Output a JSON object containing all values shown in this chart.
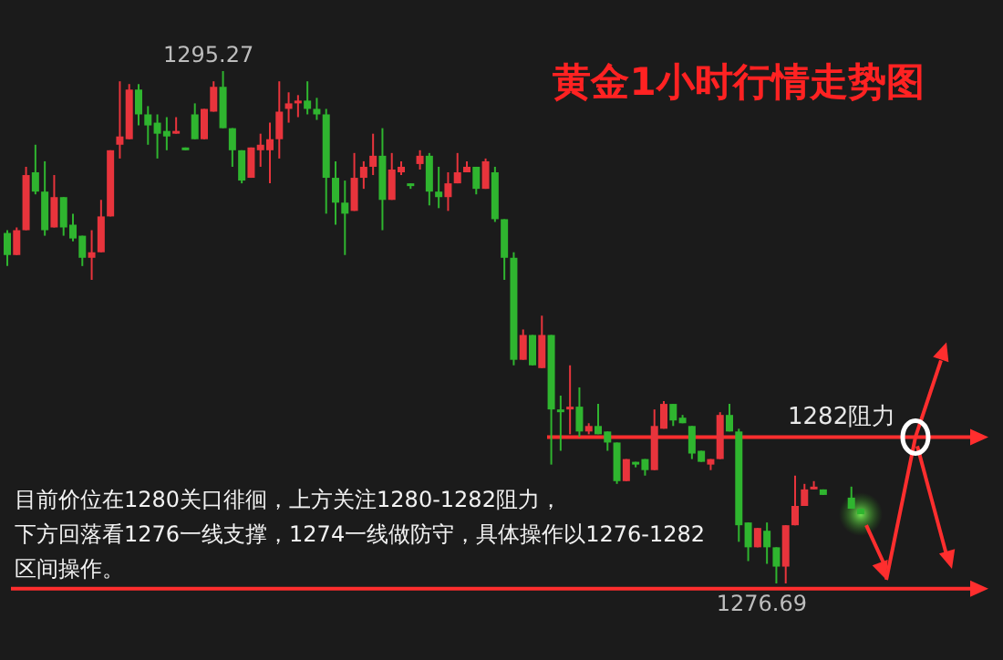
{
  "chart_data": {
    "type": "candlestick",
    "title": "黄金1小时行情走势图",
    "categories": [
      null,
      null,
      null,
      null,
      null,
      null,
      null,
      null,
      null,
      null,
      null,
      null,
      null,
      null,
      null,
      null,
      null,
      null,
      null,
      null,
      null,
      null,
      null,
      null,
      null,
      null,
      null,
      null,
      null,
      null,
      null,
      null,
      null,
      null,
      null,
      null,
      null,
      null,
      null,
      null,
      null,
      null,
      null,
      null,
      null,
      null,
      null,
      null,
      null,
      null,
      null,
      null,
      null,
      null,
      null,
      null,
      null,
      null,
      null,
      null,
      null,
      null,
      null,
      null,
      null,
      null,
      null,
      null,
      null,
      null,
      null,
      null,
      null,
      null,
      null,
      null,
      null,
      null,
      null,
      null,
      null,
      null,
      null,
      null,
      null,
      null,
      null,
      null,
      null,
      null,
      null,
      null
    ],
    "ohlc": [
      [
        1289.4,
        1289.5,
        1288.2,
        1288.6
      ],
      [
        1288.6,
        1289.6,
        1288.6,
        1289.5
      ],
      [
        1289.5,
        1291.8,
        1289.5,
        1291.5
      ],
      [
        1291.6,
        1292.6,
        1290.8,
        1290.9
      ],
      [
        1290.9,
        1292.0,
        1289.3,
        1289.5
      ],
      [
        1289.6,
        1291.5,
        1289.6,
        1290.7
      ],
      [
        1290.7,
        1290.7,
        1289.3,
        1289.6
      ],
      [
        1289.7,
        1290.1,
        1289.1,
        1289.2
      ],
      [
        1289.3,
        1289.3,
        1288.2,
        1288.5
      ],
      [
        1288.5,
        1289.5,
        1287.7,
        1288.7
      ],
      [
        1288.7,
        1290.6,
        1288.7,
        1290.0
      ],
      [
        1290.0,
        1292.4,
        1290.0,
        1292.4
      ],
      [
        1292.6,
        1294.9,
        1292.1,
        1292.9
      ],
      [
        1292.8,
        1294.8,
        1292.8,
        1294.6
      ],
      [
        1294.6,
        1294.8,
        1293.3,
        1293.7
      ],
      [
        1293.7,
        1294.0,
        1292.6,
        1293.3
      ],
      [
        1293.4,
        1293.7,
        1292.1,
        1293.0
      ],
      [
        1293.1,
        1293.6,
        1292.4,
        1292.9
      ],
      [
        1293.0,
        1293.6,
        1293.0,
        1293.1
      ],
      [
        1292.5,
        1292.5,
        1292.4,
        1292.4
      ],
      [
        1293.7,
        1294.1,
        1292.8,
        1292.8
      ],
      [
        1292.8,
        1293.9,
        1292.8,
        1293.9
      ],
      [
        1293.8,
        1294.9,
        1293.8,
        1294.7
      ],
      [
        1294.7,
        1295.27,
        1293.2,
        1293.2
      ],
      [
        1293.2,
        1293.2,
        1291.8,
        1292.4
      ],
      [
        1292.4,
        1292.4,
        1291.2,
        1291.3
      ],
      [
        1291.4,
        1292.5,
        1291.4,
        1292.5
      ],
      [
        1292.4,
        1293.0,
        1291.8,
        1292.6
      ],
      [
        1292.4,
        1293.4,
        1291.2,
        1292.8
      ],
      [
        1292.8,
        1294.9,
        1292.1,
        1293.8
      ],
      [
        1293.9,
        1294.5,
        1293.4,
        1294.1
      ],
      [
        1294.1,
        1294.4,
        1293.6,
        1294.2
      ],
      [
        1294.2,
        1294.9,
        1293.7,
        1293.9
      ],
      [
        1293.9,
        1294.3,
        1293.5,
        1293.7
      ],
      [
        1293.7,
        1293.9,
        1290.1,
        1291.4
      ],
      [
        1291.4,
        1292.0,
        1289.7,
        1290.5
      ],
      [
        1290.5,
        1291.3,
        1288.6,
        1290.1
      ],
      [
        1290.2,
        1292.3,
        1290.2,
        1291.4
      ],
      [
        1291.4,
        1292.0,
        1291.0,
        1291.8
      ],
      [
        1291.8,
        1293.0,
        1291.5,
        1292.2
      ],
      [
        1292.2,
        1293.2,
        1289.5,
        1290.6
      ],
      [
        1290.6,
        1292.3,
        1290.6,
        1291.7
      ],
      [
        1291.6,
        1292.0,
        1291.5,
        1291.8
      ],
      [
        1291.2,
        1291.2,
        1291.0,
        1291.1
      ],
      [
        1291.9,
        1292.4,
        1291.7,
        1292.2
      ],
      [
        1292.2,
        1292.3,
        1290.4,
        1290.9
      ],
      [
        1290.9,
        1291.8,
        1290.3,
        1290.7
      ],
      [
        1290.7,
        1291.6,
        1290.2,
        1291.2
      ],
      [
        1291.2,
        1292.3,
        1291.2,
        1291.6
      ],
      [
        1291.6,
        1292.0,
        1291.6,
        1291.8
      ],
      [
        1291.8,
        1291.8,
        1290.8,
        1291.0
      ],
      [
        1291.0,
        1292.1,
        1291.0,
        1292.0
      ],
      [
        1291.6,
        1291.8,
        1289.8,
        1289.9
      ],
      [
        1289.9,
        1289.9,
        1287.7,
        1288.5
      ],
      [
        1288.5,
        1288.7,
        1284.6,
        1284.8
      ],
      [
        1284.8,
        1285.9,
        1284.8,
        1285.7
      ],
      [
        1285.7,
        1285.7,
        1284.6,
        1284.6
      ],
      [
        1284.5,
        1286.4,
        1284.5,
        1285.7
      ],
      [
        1285.7,
        1285.7,
        1281.0,
        1283.0
      ],
      [
        1283.0,
        1283.5,
        1281.5,
        1282.9
      ],
      [
        1283.0,
        1284.6,
        1282.1,
        1283.1
      ],
      [
        1283.1,
        1283.8,
        1282.0,
        1282.2
      ],
      [
        1282.2,
        1282.5,
        1282.1,
        1282.4
      ],
      [
        1282.4,
        1283.2,
        1282.1,
        1282.1
      ],
      [
        1282.2,
        1282.2,
        1281.5,
        1281.8
      ],
      [
        1281.8,
        1281.8,
        1280.3,
        1280.4
      ],
      [
        1280.4,
        1281.2,
        1280.4,
        1281.2
      ],
      [
        1281.1,
        1281.1,
        1280.9,
        1281.0
      ],
      [
        1281.2,
        1281.2,
        1280.6,
        1280.8
      ],
      [
        1280.8,
        1283.0,
        1280.8,
        1282.4
      ],
      [
        1282.3,
        1283.3,
        1282.3,
        1283.2
      ],
      [
        1283.2,
        1283.2,
        1282.4,
        1282.6
      ],
      [
        1282.7,
        1282.8,
        1282.5,
        1282.5
      ],
      [
        1282.4,
        1282.4,
        1281.2,
        1281.4
      ],
      [
        1281.5,
        1281.5,
        1281.1,
        1281.1
      ],
      [
        1281.0,
        1281.2,
        1280.8,
        1281.2
      ],
      [
        1281.2,
        1282.9,
        1281.2,
        1282.8
      ],
      [
        1282.8,
        1283.2,
        1282.2,
        1282.2
      ],
      [
        1282.2,
        1282.3,
        1278.2,
        1278.8
      ],
      [
        1278.9,
        1278.9,
        1277.5,
        1278.0
      ],
      [
        1278.0,
        1278.7,
        1278.0,
        1278.7
      ],
      [
        1278.6,
        1278.9,
        1277.4,
        1278.0
      ],
      [
        1278.0,
        1278.0,
        1276.69,
        1277.3
      ],
      [
        1277.3,
        1278.8,
        1276.69,
        1278.8
      ],
      [
        1278.8,
        1280.6,
        1278.8,
        1279.5
      ],
      [
        1279.5,
        1280.3,
        1279.5,
        1280.1
      ],
      [
        1280.1,
        1280.4,
        1280.1,
        1280.2
      ],
      [
        1280.1,
        1280.1,
        1279.9,
        1279.9
      ],
      null,
      null,
      [
        1279.8,
        1280.2,
        1279.4,
        1279.4
      ],
      [
        1279.4,
        1279.4,
        1279.2,
        1279.2
      ]
    ],
    "ref_lines": [
      {
        "axis": "y",
        "value": 1282,
        "label": "1282阻力",
        "color": "#ff2e2e"
      },
      {
        "axis": "y",
        "value": 1276.5,
        "color": "#ff2e2e"
      }
    ],
    "annotations": [
      "1295.27",
      "1276.69",
      "目前价位在1280关口徘徊，上方关注1280-1282阻力，",
      "下方回落看1276一线支撑，1274一线做防守，具体操作以1276-1282",
      "区间操作。"
    ]
  }
}
